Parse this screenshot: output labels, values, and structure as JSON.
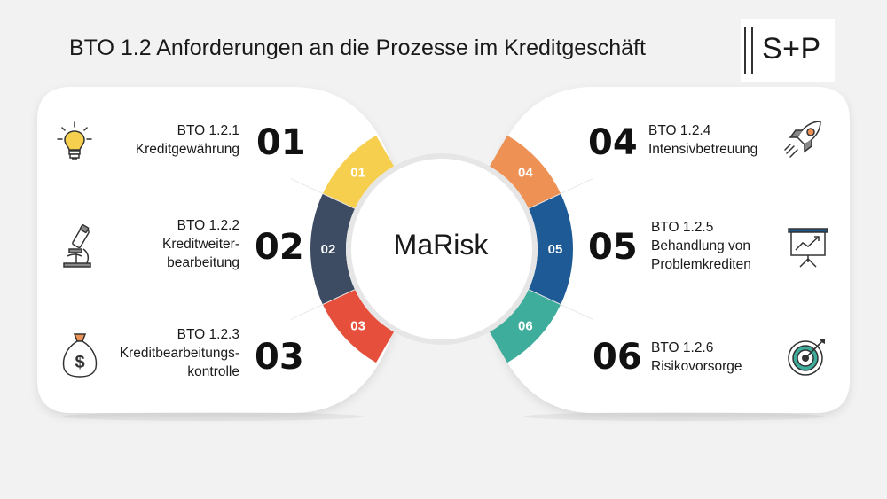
{
  "title": "BTO 1.2 Anforderungen an die Prozesse im Kreditgeschäft",
  "logo_text": "S+P",
  "center_label": "MaRisk",
  "items": [
    {
      "num": "01",
      "code": "BTO 1.2.1",
      "label_lines": [
        "Kreditgewährung"
      ],
      "icon": "lightbulb-icon",
      "color": "#f6cf4f"
    },
    {
      "num": "02",
      "code": "BTO 1.2.2",
      "label_lines": [
        "Kreditweiter-",
        "bearbeitung"
      ],
      "icon": "microscope-icon",
      "color": "#3d4c63"
    },
    {
      "num": "03",
      "code": "BTO 1.2.3",
      "label_lines": [
        "Kreditbearbeitungs-",
        "kontrolle"
      ],
      "icon": "money-bag-icon",
      "color": "#e64f3b"
    },
    {
      "num": "04",
      "code": "BTO 1.2.4",
      "label_lines": [
        "Intensivbetreuung"
      ],
      "icon": "rocket-icon",
      "color": "#ed9155"
    },
    {
      "num": "05",
      "code": "BTO 1.2.5",
      "label_lines": [
        "Behandlung von",
        "Problemkrediten"
      ],
      "icon": "presentation-board-icon",
      "color": "#1e5b96"
    },
    {
      "num": "06",
      "code": "BTO 1.2.6",
      "label_lines": [
        "Risikovorsorge"
      ],
      "icon": "target-icon",
      "color": "#3fad9c"
    }
  ]
}
